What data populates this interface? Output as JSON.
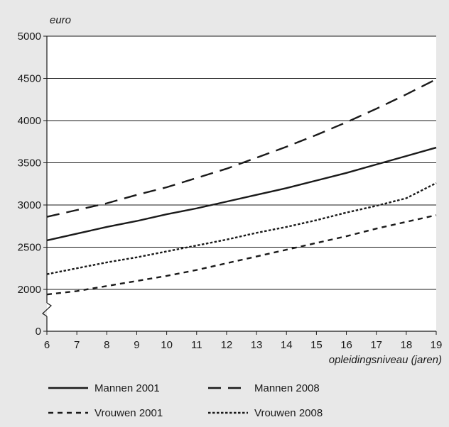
{
  "chart_data": {
    "type": "line",
    "title": "",
    "ylabel": "euro",
    "xlabel": "opleidingsniveau (jaren)",
    "x": [
      6,
      7,
      8,
      9,
      10,
      11,
      12,
      13,
      14,
      15,
      16,
      17,
      18,
      19
    ],
    "xlim": [
      6,
      19
    ],
    "y_ticks": [
      0,
      2000,
      2500,
      3000,
      3500,
      4000,
      4500,
      5000
    ],
    "y_axis_break": "between 0 and 2000",
    "grid": "horizontal",
    "legend_position": "bottom",
    "series": [
      {
        "name": "Mannen 2001",
        "dash": "solid",
        "values": [
          2580,
          2660,
          2740,
          2810,
          2890,
          2960,
          3040,
          3120,
          3200,
          3290,
          3380,
          3480,
          3580,
          3680
        ]
      },
      {
        "name": "Mannen 2008",
        "dash": "long-dash",
        "values": [
          2860,
          2940,
          3020,
          3120,
          3210,
          3320,
          3430,
          3560,
          3690,
          3830,
          3980,
          4140,
          4310,
          4490
        ]
      },
      {
        "name": "Vrouwen 2001",
        "dash": "short-dash",
        "values": [
          1940,
          1980,
          2040,
          2100,
          2160,
          2230,
          2310,
          2390,
          2470,
          2550,
          2630,
          2720,
          2800,
          2880
        ]
      },
      {
        "name": "Vrouwen 2008",
        "dash": "dotted",
        "values": [
          2180,
          2250,
          2320,
          2380,
          2450,
          2520,
          2590,
          2670,
          2740,
          2820,
          2910,
          2990,
          3080,
          3260
        ]
      }
    ]
  }
}
